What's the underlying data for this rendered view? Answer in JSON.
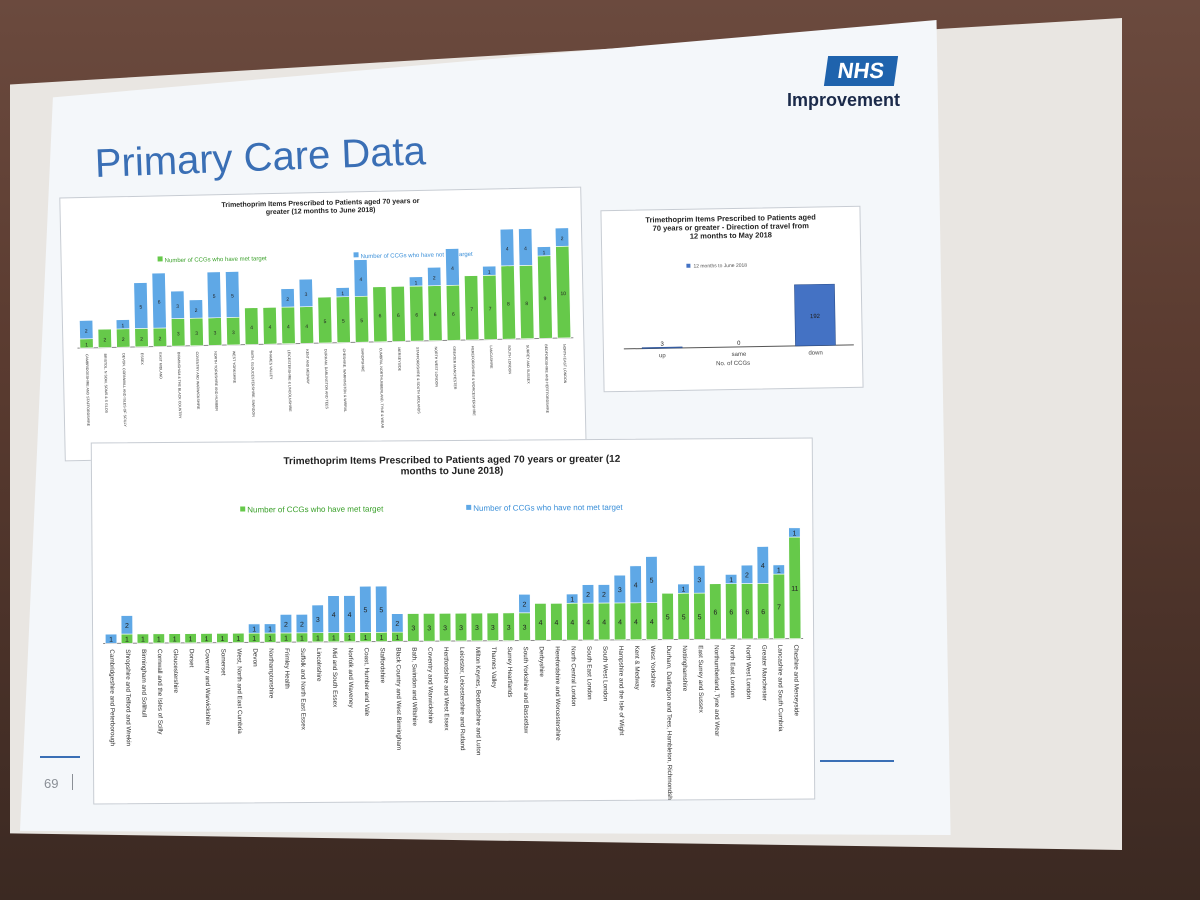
{
  "slide": {
    "title": "Primary Care Data",
    "logo_text": "NHS",
    "org_name": "Improvement",
    "page_number": "69"
  },
  "colors": {
    "met": "#66c94a",
    "not_met": "#5fa8e6",
    "title_blue": "#3a6fb5",
    "down_bar": "#4472c4"
  },
  "chart_data": [
    {
      "type": "bar",
      "stacked": true,
      "title": "Trimethoprim Items Prescribed to Patients aged 70 years or greater (12 months to June 2018)",
      "legend": [
        "Number of CCGs who have met target",
        "Number of CCGs who have not met target"
      ],
      "categories": [
        "CAMBRIDGESHIRE AND STAFFORDSHIRE",
        "BRISTOL, N SOM, SOMS & S GLOS",
        "DEVON, CORNWALL AND ISLES OF SCILLY",
        "ESSEX",
        "EAST MIDLAND",
        "BIRMINGHAM & THE BLACK COUNTRY",
        "COVENTRY AND WARWICKSHIRE",
        "NORTH YORKSHIRE AND HUMBER",
        "WEST YORKSHIRE",
        "BATH, GLOUCESTERSHIRE, SWINDON",
        "THAMES VALLEY",
        "LEICESTERSHIRE & LINCOLNSHIRE",
        "KENT AND MEDWAY",
        "DURHAM, DARLINGTON AND TEES",
        "CHESHIRE, WARRINGTON & WIRRAL",
        "SHROPSHIRE",
        "CUMBRIA, NORTHUMBERLAND, TYNE & WEAR",
        "MERSEYSIDE",
        "STAFFORDSHIRE & SOUTH MIDLANDS",
        "NORTH WEST LONDON",
        "GREATER MANCHESTER",
        "HEREFORDSHIRE & WORCESTERSHIRE",
        "LANCASHIRE",
        "SOUTH LONDON",
        "SURREY AND SUSSEX",
        "BEDFORDSHIRE AND HERTFORDSHIRE",
        "NORTH EAST LONDON"
      ],
      "series": [
        {
          "name": "Number of CCGs who have met target",
          "values": [
            1,
            2,
            2,
            2,
            2,
            3,
            3,
            3,
            3,
            4,
            4,
            4,
            4,
            5,
            5,
            5,
            6,
            6,
            6,
            6,
            6,
            7,
            7,
            8,
            8,
            9,
            10
          ]
        },
        {
          "name": "Number of CCGs who have not met target",
          "values": [
            2,
            0,
            1,
            5,
            6,
            3,
            2,
            5,
            5,
            0,
            0,
            2,
            3,
            0,
            1,
            4,
            0,
            0,
            1,
            2,
            4,
            0,
            1,
            4,
            4,
            1,
            2
          ]
        }
      ],
      "ylim": [
        0,
        12
      ]
    },
    {
      "type": "bar",
      "title": "Trimethoprim Items Prescribed to Patients aged 70 years or greater - Direction of travel from 12 months to May 2018",
      "legend": [
        "12 months to June 2018"
      ],
      "categories": [
        "up",
        "same",
        "down"
      ],
      "values": [
        3,
        0,
        192
      ],
      "xlabel": "No. of CCGs",
      "ylim": [
        0,
        220
      ]
    },
    {
      "type": "bar",
      "stacked": true,
      "title": "Trimethoprim Items Prescribed to Patients aged 70 years or greater (12 months to June 2018)",
      "legend": [
        "Number of CCGs who have met target",
        "Number of CCGs who have not met target"
      ],
      "categories": [
        "Cambridgeshire and Peterborough",
        "Shropshire and Telford and Wrekin",
        "Birmingham and Solihull",
        "Cornwall and the Isles of Scilly",
        "Gloucestershire",
        "Dorset",
        "Coventry and Warwickshire",
        "Somerset",
        "West, North and East Cumbria",
        "Devon",
        "Northamptonshire",
        "Frimley Health",
        "Suffolk and North East Essex",
        "Lincolnshire",
        "Mid and South Essex",
        "Norfolk and Waveney",
        "Coast, Humber and Vale",
        "Staffordshire",
        "Black Country and West Birmingham",
        "Bath, Swindon and Wiltshire",
        "Coventry and Warwickshire",
        "Hertfordshire and West Essex",
        "Leicester, Leicestershire and Rutland",
        "Milton Keynes, Bedfordshire and Luton",
        "Thames Valley",
        "Surrey Heartlands",
        "South Yorkshire and Bassetlaw",
        "Derbyshire",
        "Herefordshire and Worcestershire",
        "North Central London",
        "South East London",
        "South West London",
        "Hampshire and the Isle of Wight",
        "Kent & Medway",
        "West Yorkshire",
        "Durham, Darlington and Tees, Hambleton, Richmondshire and Whitby",
        "Nottinghamshire",
        "East Surrey and Sussex",
        "Northumberland, Tyne and Wear",
        "North East London",
        "North West London",
        "Greater Manchester",
        "Lancashire and South Cumbria",
        "Cheshire and Merseyside"
      ],
      "series": [
        {
          "name": "Number of CCGs who have met target",
          "values": [
            0,
            1,
            1,
            1,
            1,
            1,
            1,
            1,
            1,
            1,
            1,
            1,
            1,
            1,
            1,
            1,
            1,
            1,
            1,
            3,
            3,
            3,
            3,
            3,
            3,
            3,
            3,
            4,
            4,
            4,
            4,
            4,
            4,
            4,
            4,
            5,
            5,
            5,
            6,
            6,
            6,
            6,
            7,
            11
          ]
        },
        {
          "name": "Number of CCGs who have not met target",
          "values": [
            1,
            2,
            0,
            0,
            0,
            0,
            0,
            0,
            0,
            1,
            1,
            2,
            2,
            3,
            4,
            4,
            5,
            5,
            2,
            0,
            0,
            0,
            0,
            0,
            0,
            0,
            2,
            0,
            0,
            1,
            2,
            2,
            3,
            4,
            5,
            0,
            1,
            3,
            0,
            1,
            2,
            4,
            1,
            1
          ]
        }
      ],
      "ylim": [
        0,
        13
      ]
    }
  ]
}
